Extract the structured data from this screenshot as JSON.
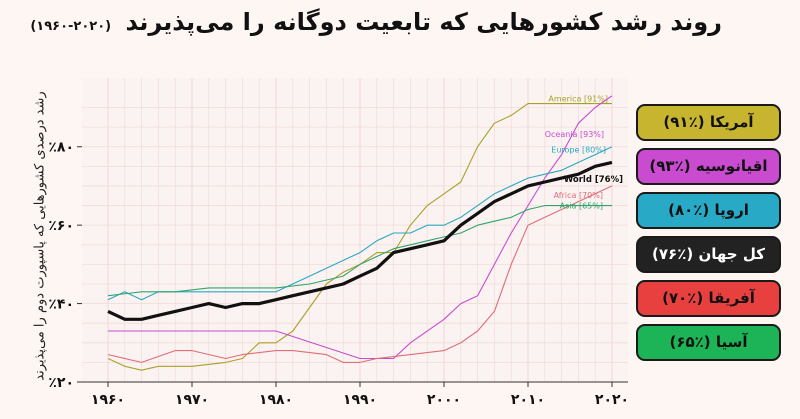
{
  "title": "روند رشد کشورهایی که تابعیت دوگانه را می‌پذیرند",
  "subtitle": "(۲۰۲۰-۱۹۶۰)",
  "chart_data": {
    "type": "line",
    "ylabel": "رشد درصدی کشورهایی که پاسپورت دوم را می‌پذیرند",
    "xlim": [
      1960,
      2020
    ],
    "ylim": [
      0.2,
      0.96
    ],
    "xticks": [
      1960,
      1970,
      1980,
      1990,
      2000,
      2010,
      2020
    ],
    "xtick_labels": [
      "۱۹۶۰",
      "۱۹۷۰",
      "۱۹۸۰",
      "۱۹۹۰",
      "۲۰۰۰",
      "۲۰۱۰",
      "۲۰۲۰"
    ],
    "yticks": [
      0.2,
      0.4,
      0.6,
      0.8
    ],
    "ytick_labels": [
      "٪۲۰",
      "٪۴۰",
      "٪۶۰",
      "٪۸۰"
    ],
    "series": [
      {
        "name": "America",
        "label": "America [91%]",
        "color": "#aaa027",
        "bold": false,
        "x": [
          1960,
          1962,
          1964,
          1966,
          1970,
          1974,
          1976,
          1978,
          1980,
          1982,
          1986,
          1988,
          1990,
          1992,
          1994,
          1996,
          1998,
          2000,
          2002,
          2004,
          2006,
          2008,
          2010,
          2012,
          2014,
          2016,
          2018,
          2020
        ],
        "y": [
          0.26,
          0.24,
          0.23,
          0.24,
          0.24,
          0.25,
          0.26,
          0.3,
          0.3,
          0.33,
          0.45,
          0.48,
          0.5,
          0.53,
          0.53,
          0.6,
          0.65,
          0.68,
          0.71,
          0.8,
          0.86,
          0.88,
          0.91,
          0.91,
          0.91,
          0.91,
          0.91,
          0.91
        ]
      },
      {
        "name": "Oceania",
        "label": "Oceania [93%]",
        "color": "#c94bd0",
        "bold": false,
        "x": [
          1960,
          1970,
          1980,
          1990,
          1994,
          1996,
          2000,
          2002,
          2004,
          2006,
          2008,
          2010,
          2012,
          2014,
          2016,
          2018,
          2020
        ],
        "y": [
          0.33,
          0.33,
          0.33,
          0.26,
          0.26,
          0.3,
          0.36,
          0.4,
          0.42,
          0.5,
          0.58,
          0.65,
          0.72,
          0.78,
          0.86,
          0.9,
          0.93
        ]
      },
      {
        "name": "Europe",
        "label": "Europe [80%]",
        "color": "#2aa8c2",
        "bold": false,
        "x": [
          1960,
          1962,
          1964,
          1966,
          1970,
          1974,
          1978,
          1980,
          1984,
          1988,
          1990,
          1992,
          1994,
          1996,
          1998,
          2000,
          2002,
          2004,
          2006,
          2008,
          2010,
          2012,
          2014,
          2016,
          2018,
          2020
        ],
        "y": [
          0.41,
          0.43,
          0.41,
          0.43,
          0.43,
          0.43,
          0.43,
          0.43,
          0.47,
          0.51,
          0.53,
          0.56,
          0.58,
          0.58,
          0.6,
          0.6,
          0.62,
          0.65,
          0.68,
          0.7,
          0.72,
          0.73,
          0.74,
          0.76,
          0.78,
          0.8
        ]
      },
      {
        "name": "Africa",
        "label": "Africa [70%]",
        "color": "#e06c7a",
        "bold": false,
        "x": [
          1960,
          1964,
          1968,
          1970,
          1974,
          1976,
          1980,
          1982,
          1986,
          1988,
          1990,
          1992,
          1996,
          2000,
          2002,
          2004,
          2006,
          2008,
          2010,
          2012,
          2014,
          2016,
          2018,
          2020
        ],
        "y": [
          0.27,
          0.25,
          0.28,
          0.28,
          0.26,
          0.27,
          0.28,
          0.28,
          0.27,
          0.25,
          0.25,
          0.26,
          0.27,
          0.28,
          0.3,
          0.33,
          0.38,
          0.5,
          0.6,
          0.62,
          0.64,
          0.66,
          0.68,
          0.7
        ]
      },
      {
        "name": "Asia",
        "label": "Asia [65%]",
        "color": "#30a46c",
        "bold": false,
        "x": [
          1960,
          1964,
          1968,
          1972,
          1976,
          1980,
          1984,
          1988,
          1990,
          1992,
          1994,
          1996,
          1998,
          2000,
          2002,
          2004,
          2006,
          2008,
          2010,
          2012,
          2014,
          2016,
          2018,
          2020
        ],
        "y": [
          0.42,
          0.43,
          0.43,
          0.44,
          0.44,
          0.44,
          0.45,
          0.47,
          0.5,
          0.52,
          0.54,
          0.55,
          0.56,
          0.57,
          0.58,
          0.6,
          0.61,
          0.62,
          0.64,
          0.65,
          0.65,
          0.65,
          0.65,
          0.65
        ]
      },
      {
        "name": "World",
        "label": "World [76%]",
        "color": "#111111",
        "bold": true,
        "x": [
          1960,
          1962,
          1964,
          1966,
          1968,
          1970,
          1972,
          1974,
          1976,
          1978,
          1980,
          1982,
          1984,
          1986,
          1988,
          1990,
          1992,
          1994,
          1996,
          1998,
          2000,
          2002,
          2004,
          2006,
          2008,
          2010,
          2012,
          2014,
          2016,
          2018,
          2020
        ],
        "y": [
          0.38,
          0.36,
          0.36,
          0.37,
          0.38,
          0.39,
          0.4,
          0.39,
          0.4,
          0.4,
          0.41,
          0.42,
          0.43,
          0.44,
          0.45,
          0.47,
          0.49,
          0.53,
          0.54,
          0.55,
          0.56,
          0.6,
          0.63,
          0.66,
          0.68,
          0.7,
          0.71,
          0.72,
          0.73,
          0.75,
          0.76
        ]
      }
    ]
  },
  "legend": [
    {
      "label": "آمریکا (٪۹۱)",
      "color": "#c8b52f",
      "dark": false
    },
    {
      "label": "اقیانوسیه (٪۹۳)",
      "color": "#c94bd0",
      "dark": false
    },
    {
      "label": "اروپا (٪۸۰)",
      "color": "#28a9c6",
      "dark": false
    },
    {
      "label": "کل جهان (٪۷۶)",
      "color": "#222222",
      "dark": true
    },
    {
      "label": "آفریقا (٪۷۰)",
      "color": "#e8403e",
      "dark": false
    },
    {
      "label": "آسیا (٪۶۵)",
      "color": "#1db457",
      "dark": false
    }
  ]
}
